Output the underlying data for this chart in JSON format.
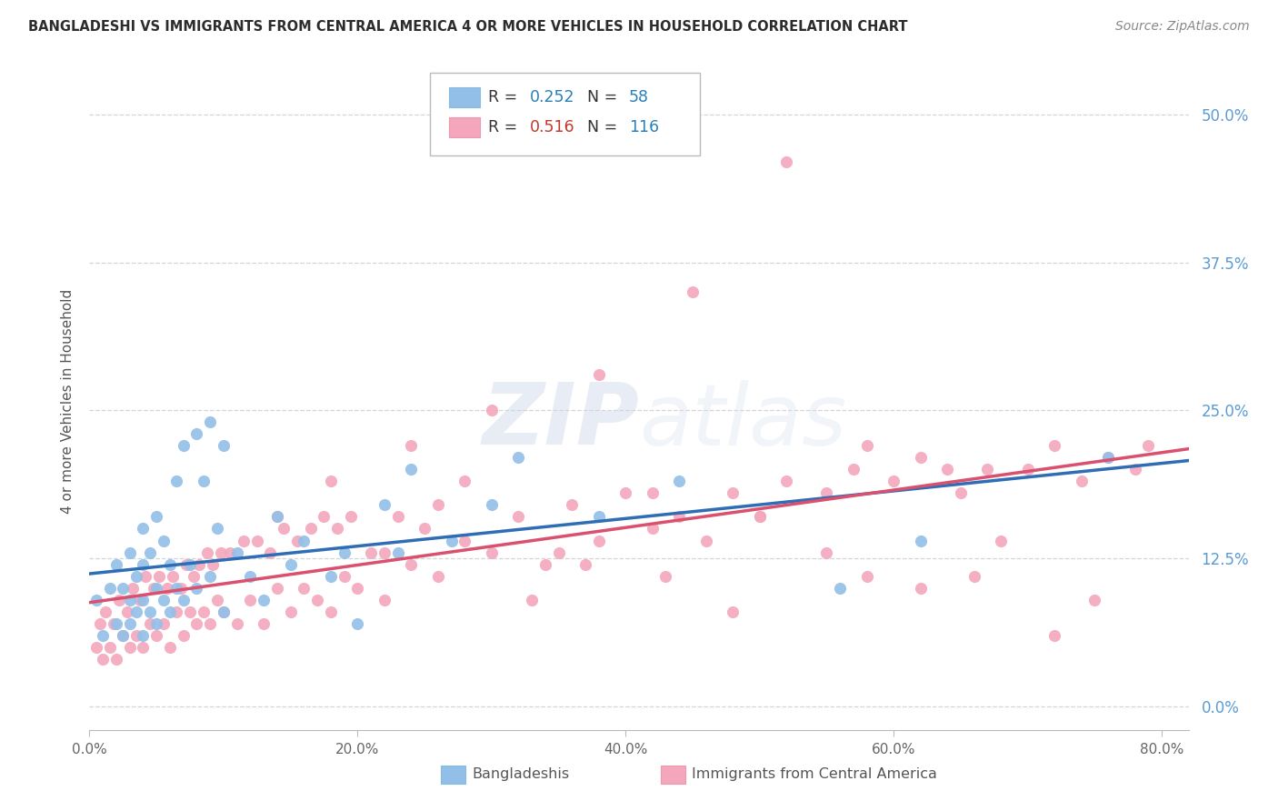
{
  "title": "BANGLADESHI VS IMMIGRANTS FROM CENTRAL AMERICA 4 OR MORE VEHICLES IN HOUSEHOLD CORRELATION CHART",
  "source": "Source: ZipAtlas.com",
  "ylabel": "4 or more Vehicles in Household",
  "xlim": [
    0.0,
    0.82
  ],
  "ylim": [
    -0.02,
    0.535
  ],
  "legend1_r": "0.252",
  "legend1_n": "58",
  "legend2_r": "0.516",
  "legend2_n": "116",
  "legend1_label": "Bangladeshis",
  "legend2_label": "Immigrants from Central America",
  "blue_color": "#92bfe8",
  "pink_color": "#f4a7bc",
  "blue_line_color": "#2f6db5",
  "pink_line_color": "#d9516e",
  "r_color_blue": "#2980b9",
  "r_color_pink": "#c0392b",
  "n_color_blue": "#2980b9",
  "n_color_pink": "#2980b9",
  "watermark_color": "#dce8f5",
  "background_color": "#ffffff",
  "grid_color": "#d5d5d5",
  "title_color": "#2c2c2c",
  "right_axis_color": "#5b9bd5",
  "blue_x": [
    0.005,
    0.01,
    0.015,
    0.02,
    0.02,
    0.025,
    0.025,
    0.03,
    0.03,
    0.03,
    0.035,
    0.035,
    0.04,
    0.04,
    0.04,
    0.04,
    0.045,
    0.045,
    0.05,
    0.05,
    0.05,
    0.055,
    0.055,
    0.06,
    0.06,
    0.065,
    0.065,
    0.07,
    0.07,
    0.075,
    0.08,
    0.08,
    0.085,
    0.09,
    0.09,
    0.095,
    0.1,
    0.1,
    0.11,
    0.12,
    0.13,
    0.14,
    0.15,
    0.16,
    0.18,
    0.19,
    0.2,
    0.22,
    0.23,
    0.24,
    0.27,
    0.3,
    0.32,
    0.38,
    0.44,
    0.56,
    0.62,
    0.76
  ],
  "blue_y": [
    0.09,
    0.06,
    0.1,
    0.07,
    0.12,
    0.06,
    0.1,
    0.07,
    0.09,
    0.13,
    0.08,
    0.11,
    0.06,
    0.09,
    0.12,
    0.15,
    0.08,
    0.13,
    0.07,
    0.1,
    0.16,
    0.09,
    0.14,
    0.08,
    0.12,
    0.1,
    0.19,
    0.09,
    0.22,
    0.12,
    0.1,
    0.23,
    0.19,
    0.11,
    0.24,
    0.15,
    0.08,
    0.22,
    0.13,
    0.11,
    0.09,
    0.16,
    0.12,
    0.14,
    0.11,
    0.13,
    0.07,
    0.17,
    0.13,
    0.2,
    0.14,
    0.17,
    0.21,
    0.16,
    0.19,
    0.1,
    0.14,
    0.21
  ],
  "pink_x": [
    0.005,
    0.008,
    0.01,
    0.012,
    0.015,
    0.018,
    0.02,
    0.022,
    0.025,
    0.028,
    0.03,
    0.032,
    0.035,
    0.038,
    0.04,
    0.042,
    0.045,
    0.048,
    0.05,
    0.052,
    0.055,
    0.058,
    0.06,
    0.062,
    0.065,
    0.068,
    0.07,
    0.072,
    0.075,
    0.078,
    0.08,
    0.082,
    0.085,
    0.088,
    0.09,
    0.092,
    0.095,
    0.098,
    0.1,
    0.105,
    0.11,
    0.115,
    0.12,
    0.125,
    0.13,
    0.135,
    0.14,
    0.145,
    0.15,
    0.155,
    0.16,
    0.165,
    0.17,
    0.175,
    0.18,
    0.185,
    0.19,
    0.195,
    0.2,
    0.21,
    0.22,
    0.23,
    0.24,
    0.25,
    0.26,
    0.28,
    0.3,
    0.32,
    0.34,
    0.36,
    0.38,
    0.4,
    0.42,
    0.44,
    0.46,
    0.48,
    0.5,
    0.52,
    0.55,
    0.57,
    0.6,
    0.62,
    0.65,
    0.67,
    0.7,
    0.72,
    0.74,
    0.76,
    0.78,
    0.79,
    0.45,
    0.38,
    0.52,
    0.3,
    0.24,
    0.18,
    0.14,
    0.68,
    0.58,
    0.48,
    0.35,
    0.26,
    0.55,
    0.43,
    0.33,
    0.62,
    0.72,
    0.66,
    0.75,
    0.64,
    0.42,
    0.58,
    0.5,
    0.37,
    0.28,
    0.22
  ],
  "pink_y": [
    0.05,
    0.07,
    0.04,
    0.08,
    0.05,
    0.07,
    0.04,
    0.09,
    0.06,
    0.08,
    0.05,
    0.1,
    0.06,
    0.09,
    0.05,
    0.11,
    0.07,
    0.1,
    0.06,
    0.11,
    0.07,
    0.1,
    0.05,
    0.11,
    0.08,
    0.1,
    0.06,
    0.12,
    0.08,
    0.11,
    0.07,
    0.12,
    0.08,
    0.13,
    0.07,
    0.12,
    0.09,
    0.13,
    0.08,
    0.13,
    0.07,
    0.14,
    0.09,
    0.14,
    0.07,
    0.13,
    0.1,
    0.15,
    0.08,
    0.14,
    0.1,
    0.15,
    0.09,
    0.16,
    0.08,
    0.15,
    0.11,
    0.16,
    0.1,
    0.13,
    0.09,
    0.16,
    0.12,
    0.15,
    0.11,
    0.14,
    0.13,
    0.16,
    0.12,
    0.17,
    0.14,
    0.18,
    0.15,
    0.16,
    0.14,
    0.18,
    0.16,
    0.19,
    0.18,
    0.2,
    0.19,
    0.21,
    0.18,
    0.2,
    0.2,
    0.22,
    0.19,
    0.21,
    0.2,
    0.22,
    0.35,
    0.28,
    0.46,
    0.25,
    0.22,
    0.19,
    0.16,
    0.14,
    0.11,
    0.08,
    0.13,
    0.17,
    0.13,
    0.11,
    0.09,
    0.1,
    0.06,
    0.11,
    0.09,
    0.2,
    0.18,
    0.22,
    0.16,
    0.12,
    0.19,
    0.13
  ]
}
